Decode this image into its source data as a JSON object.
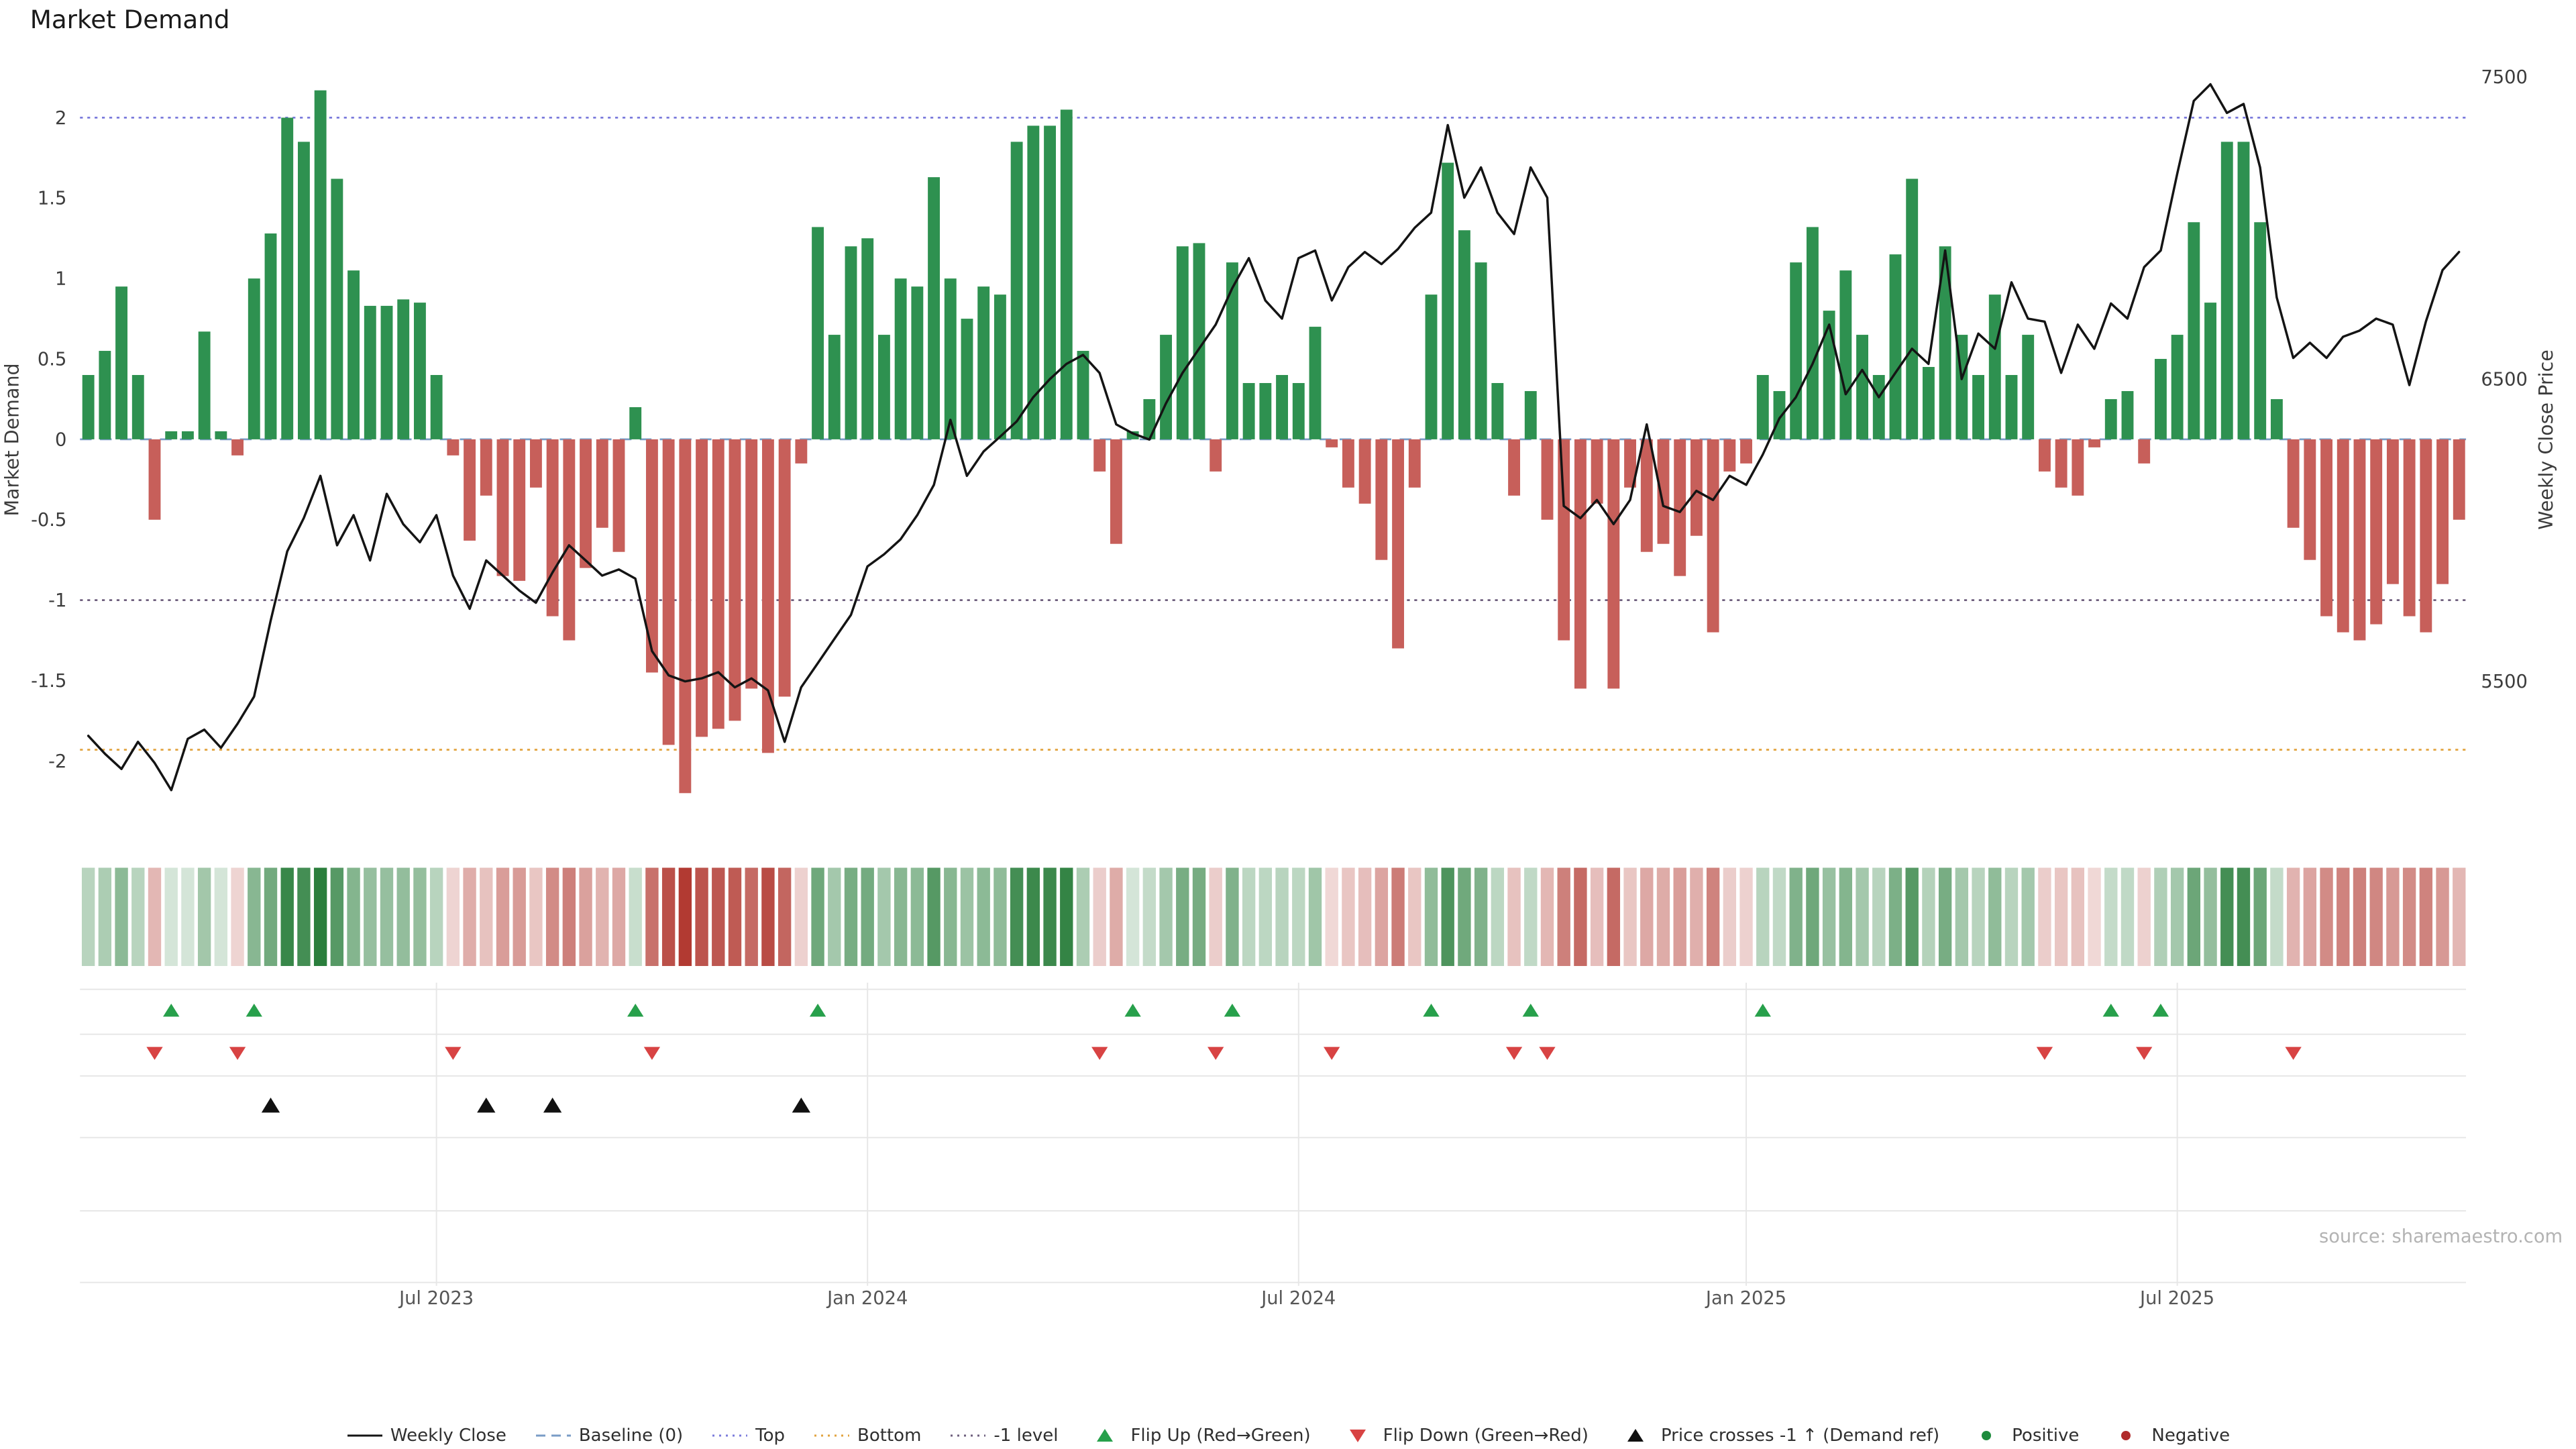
{
  "title": "Market Demand",
  "source": "source: sharemaestro.com",
  "axes": {
    "left_label": "Market Demand",
    "right_label": "Weekly Close Price",
    "left_ticks": [
      {
        "label": "2",
        "value": 2
      },
      {
        "label": "1.5",
        "value": 1.5
      },
      {
        "label": "1",
        "value": 1
      },
      {
        "label": "0.5",
        "value": 0.5
      },
      {
        "label": "0",
        "value": 0
      },
      {
        "label": "-0.5",
        "value": -0.5
      },
      {
        "label": "-1",
        "value": -1
      },
      {
        "label": "-1.5",
        "value": -1.5
      },
      {
        "label": "-2",
        "value": -2
      }
    ],
    "right_ticks": [
      {
        "label": "7500",
        "value": 7500
      },
      {
        "label": "6500",
        "value": 6500
      },
      {
        "label": "5500",
        "value": 5500
      }
    ],
    "x_ticks": [
      {
        "label": "Jul 2023",
        "index": 21
      },
      {
        "label": "Jan 2024",
        "index": 47
      },
      {
        "label": "Jul 2024",
        "index": 73
      },
      {
        "label": "Jan 2025",
        "index": 100
      },
      {
        "label": "Jul 2025",
        "index": 126
      }
    ]
  },
  "colors": {
    "positive_bar": "#2e9150",
    "negative_bar": "#c75f5a",
    "price_line": "#141414",
    "baseline": "#7a9cc6",
    "top_line": "#7b7bdc",
    "bottom_line": "#e2a33e",
    "minus1_line": "#6e5f7d",
    "flip_up_marker": "#27a04b",
    "flip_down_marker": "#d84343",
    "price_cross_marker": "#111111",
    "positive_dot": "#1e8b3d",
    "negative_dot": "#b02a2a",
    "axis_text": "#3c3c3c",
    "tick_text": "#555555",
    "grid": "#e7e7e7",
    "source_text": "#b3b3b3",
    "heat_green_base": "#287d3a",
    "heat_red_base": "#b23a32"
  },
  "chart_data": {
    "type": "bar+line",
    "x_start_date": "2023-02-06",
    "x_frequency": "weekly",
    "n_points": 144,
    "left_ylim": [
      -2.55,
      2.39
    ],
    "right_ylim": [
      4944,
      7572
    ],
    "grid": false,
    "legend_position": "bottom-center",
    "series": [
      {
        "name": "Market Demand",
        "type": "bar",
        "axis": "left",
        "values": [
          0.4,
          0.55,
          0.95,
          0.4,
          -0.5,
          0.05,
          0.05,
          0.67,
          0.05,
          -0.1,
          1.0,
          1.28,
          2.0,
          1.85,
          2.17,
          1.62,
          1.05,
          0.83,
          0.83,
          0.87,
          0.85,
          0.4,
          -0.1,
          -0.63,
          -0.35,
          -0.85,
          -0.88,
          -0.3,
          -1.1,
          -1.25,
          -0.8,
          -0.55,
          -0.7,
          0.2,
          -1.45,
          -1.9,
          -2.2,
          -1.85,
          -1.8,
          -1.75,
          -1.55,
          -1.95,
          -1.6,
          -0.15,
          1.32,
          0.65,
          1.2,
          1.25,
          0.65,
          1.0,
          0.95,
          1.63,
          1.0,
          0.75,
          0.95,
          0.9,
          1.85,
          1.95,
          1.95,
          2.05,
          0.55,
          -0.2,
          -0.65,
          0.05,
          0.25,
          0.65,
          1.2,
          1.22,
          -0.2,
          1.1,
          0.35,
          0.35,
          0.4,
          0.35,
          0.7,
          -0.05,
          -0.3,
          -0.4,
          -0.75,
          -1.3,
          -0.3,
          0.9,
          1.72,
          1.3,
          1.1,
          0.35,
          -0.35,
          0.3,
          -0.5,
          -1.25,
          -1.55,
          -0.4,
          -1.55,
          -0.3,
          -0.7,
          -0.65,
          -0.85,
          -0.6,
          -1.2,
          -0.2,
          -0.15,
          0.4,
          0.3,
          1.1,
          1.32,
          0.8,
          1.05,
          0.65,
          0.4,
          1.15,
          1.62,
          0.45,
          1.2,
          0.65,
          0.4,
          0.9,
          0.4,
          0.65,
          -0.2,
          -0.3,
          -0.35,
          -0.05,
          0.25,
          0.3,
          -0.15,
          0.5,
          0.65,
          1.35,
          0.85,
          1.85,
          1.85,
          1.35,
          0.25,
          -0.55,
          -0.75,
          -1.1,
          -1.2,
          -1.25,
          -1.15,
          -0.9,
          -1.1,
          -1.2,
          -0.9,
          -0.5
        ]
      },
      {
        "name": "Weekly Close",
        "type": "line",
        "axis": "right",
        "values": [
          5320,
          5260,
          5210,
          5300,
          5230,
          5140,
          5310,
          5340,
          5280,
          5360,
          5450,
          5700,
          5930,
          6040,
          6180,
          5950,
          6050,
          5900,
          6120,
          6020,
          5960,
          6050,
          5850,
          5740,
          5900,
          5850,
          5800,
          5760,
          5860,
          5950,
          5900,
          5850,
          5870,
          5840,
          5600,
          5520,
          5500,
          5510,
          5530,
          5480,
          5510,
          5470,
          5300,
          5480,
          5560,
          5640,
          5720,
          5880,
          5920,
          5970,
          6050,
          6150,
          6365,
          6180,
          6260,
          6310,
          6360,
          6440,
          6500,
          6550,
          6580,
          6520,
          6350,
          6320,
          6300,
          6420,
          6520,
          6600,
          6680,
          6800,
          6900,
          6760,
          6700,
          6900,
          6925,
          6760,
          6870,
          6920,
          6880,
          6930,
          7000,
          7050,
          7340,
          7100,
          7200,
          7050,
          6980,
          7200,
          7100,
          6080,
          6040,
          6100,
          6020,
          6100,
          6350,
          6080,
          6060,
          6130,
          6100,
          6180,
          6150,
          6250,
          6370,
          6440,
          6550,
          6680,
          6450,
          6530,
          6440,
          6520,
          6600,
          6550,
          6925,
          6500,
          6650,
          6600,
          6820,
          6700,
          6690,
          6520,
          6680,
          6600,
          6750,
          6700,
          6870,
          6925,
          7180,
          7420,
          7475,
          7380,
          7410,
          7200,
          6770,
          6570,
          6620,
          6570,
          6640,
          6660,
          6700,
          6680,
          6480,
          6690,
          6860,
          6920
        ]
      }
    ],
    "reference_lines": [
      {
        "name": "Top",
        "value": 2.0,
        "axis": "left",
        "style": "dotted",
        "color": "#7b7bdc"
      },
      {
        "name": "Baseline (0)",
        "value": 0.0,
        "axis": "left",
        "style": "dashed",
        "color": "#7a9cc6"
      },
      {
        "name": "-1 level",
        "value": -1.0,
        "axis": "left",
        "style": "dotted",
        "color": "#6e5f7d"
      },
      {
        "name": "Bottom",
        "value": -1.93,
        "axis": "left",
        "style": "dotted",
        "color": "#e2a33e"
      }
    ],
    "markers": {
      "flip_up": [
        5,
        10,
        33,
        44,
        63,
        69,
        81,
        87,
        101,
        122,
        125
      ],
      "flip_down": [
        4,
        9,
        22,
        34,
        61,
        68,
        75,
        86,
        88,
        118,
        124,
        133
      ],
      "price_cross_minus1": [
        11,
        24,
        28,
        43
      ]
    },
    "heatmap": {
      "description": "weekly demand intensity strip, same values as Market Demand bars",
      "positive_color": "green-scale",
      "negative_color": "red-scale"
    }
  },
  "legend": {
    "items": [
      {
        "label": "Weekly Close",
        "swatch": "line",
        "color": "#141414"
      },
      {
        "label": "Baseline (0)",
        "swatch": "dashed",
        "color": "#7a9cc6"
      },
      {
        "label": "Top",
        "swatch": "dotted",
        "color": "#7b7bdc"
      },
      {
        "label": "Bottom",
        "swatch": "dotted",
        "color": "#e2a33e"
      },
      {
        "label": "-1 level",
        "swatch": "dotted",
        "color": "#6e5f7d"
      },
      {
        "label": "Flip Up (Red→Green)",
        "swatch": "triangle-up",
        "color": "#27a04b"
      },
      {
        "label": "Flip Down (Green→Red)",
        "swatch": "triangle-down",
        "color": "#d84343"
      },
      {
        "label": "Price crosses -1 ↑ (Demand ref)",
        "swatch": "triangle-up",
        "color": "#111111"
      },
      {
        "label": "Positive",
        "swatch": "circle",
        "color": "#1e8b3d"
      },
      {
        "label": "Negative",
        "swatch": "circle",
        "color": "#b02a2a"
      }
    ]
  }
}
